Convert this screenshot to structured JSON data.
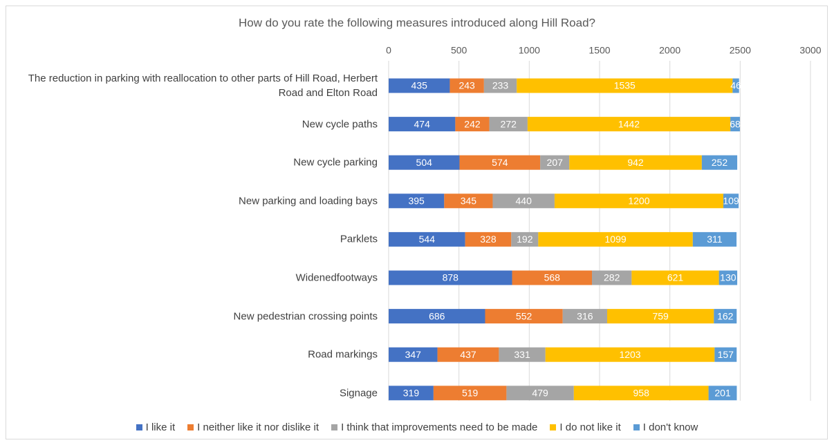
{
  "chart_data": {
    "type": "stacked_bar_horizontal",
    "title": "How do you rate the following measures introduced along Hill Road?",
    "categories": [
      "The reduction in parking with reallocation to other parts of Hill Road, Herbert Road and Elton Road",
      "New cycle paths",
      "New cycle parking",
      "New parking and loading bays",
      "Parklets",
      "Widenedfootways",
      "New pedestrian crossing points",
      "Road markings",
      "Signage"
    ],
    "series": [
      {
        "name": "I like it",
        "color": "#4472c4",
        "values": [
          435,
          474,
          504,
          395,
          544,
          878,
          686,
          347,
          319
        ]
      },
      {
        "name": "I neither like it nor dislike it",
        "color": "#ed7d31",
        "values": [
          243,
          242,
          574,
          345,
          328,
          568,
          552,
          437,
          519
        ]
      },
      {
        "name": "I think that improvements need to be made",
        "color": "#a5a5a5",
        "values": [
          233,
          272,
          207,
          440,
          192,
          282,
          316,
          331,
          479
        ]
      },
      {
        "name": "I do not like it",
        "color": "#ffc000",
        "values": [
          1535,
          1442,
          942,
          1200,
          1099,
          621,
          759,
          1203,
          958
        ]
      },
      {
        "name": "I don't know",
        "color": "#5b9bd5",
        "values": [
          46,
          68,
          252,
          109,
          311,
          130,
          162,
          157,
          201
        ]
      }
    ],
    "xlim": [
      0,
      3000
    ],
    "xticks": [
      0,
      500,
      1000,
      1500,
      2000,
      2500,
      3000
    ],
    "grid": true,
    "legend": "bottom"
  }
}
